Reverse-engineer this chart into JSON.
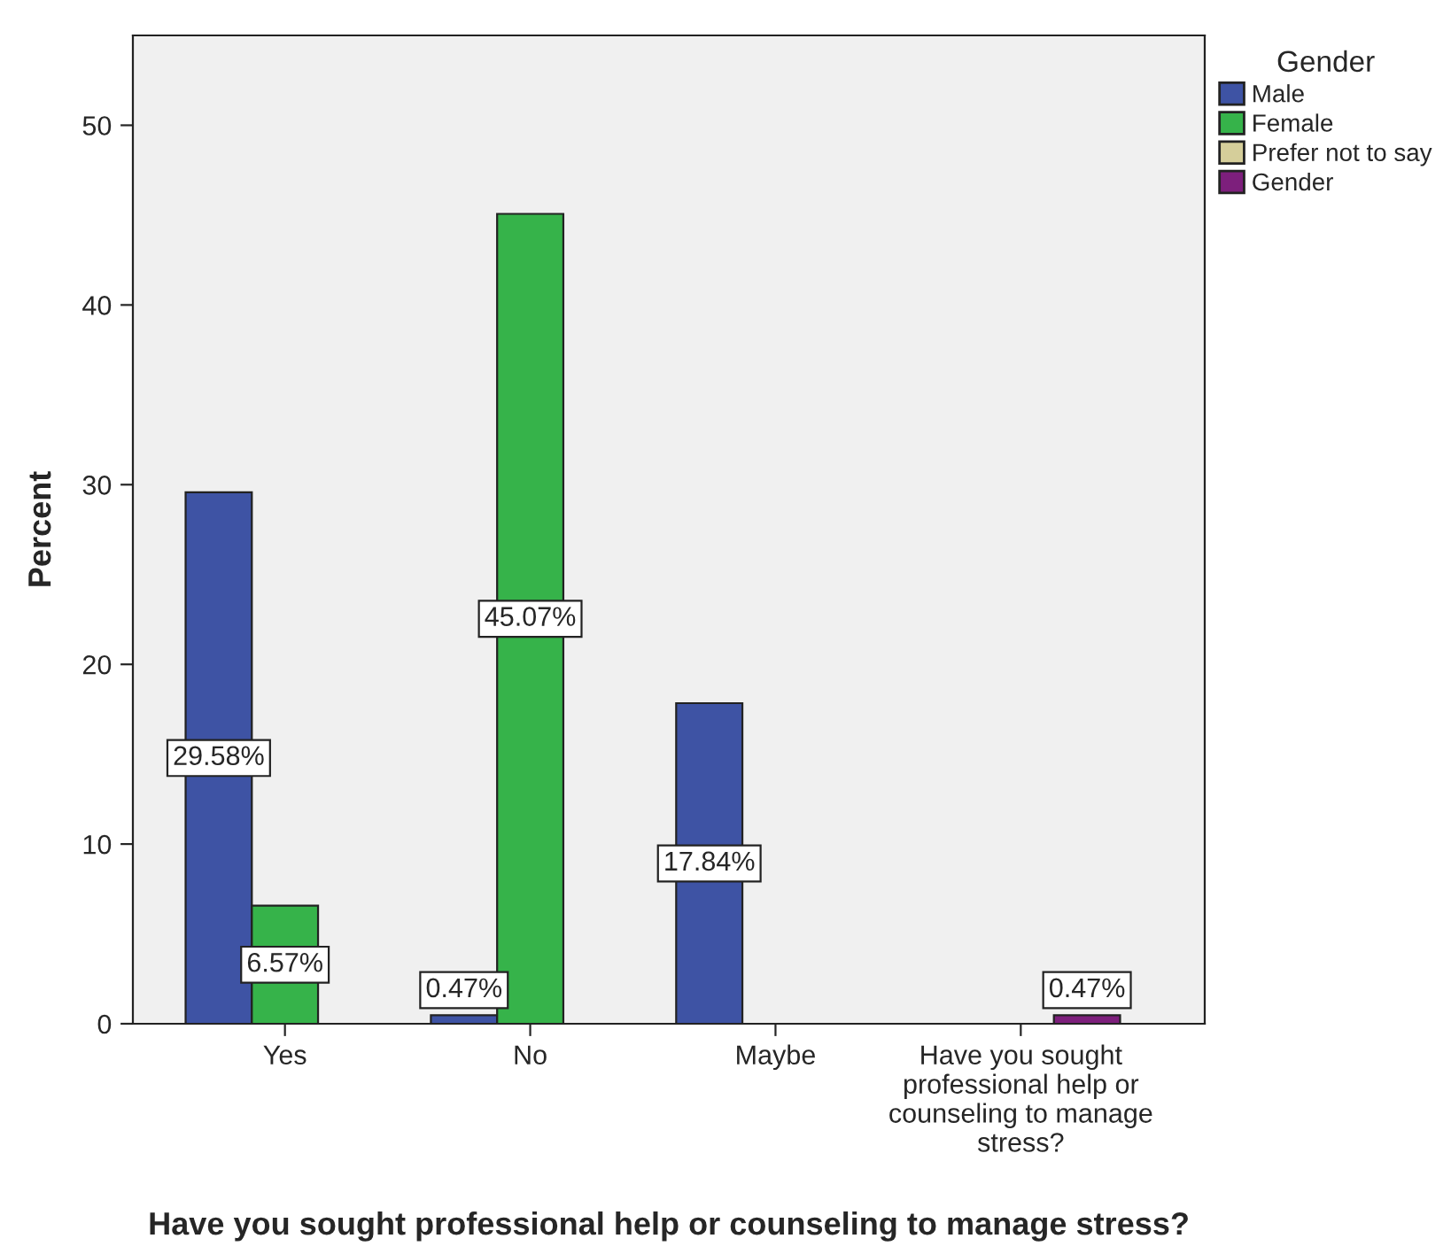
{
  "chart_data": {
    "type": "bar",
    "xlabel": "Have you sought professional help or counseling to manage stress?",
    "ylabel": "Percent",
    "legend_title": "Gender",
    "categories": [
      "Yes",
      "No",
      "Maybe",
      "Have you sought professional help or counseling to manage stress?"
    ],
    "series": [
      {
        "name": "Male",
        "color": "#3e53a4",
        "values": [
          29.58,
          0.47,
          17.84,
          null
        ],
        "value_labels": [
          "29.58%",
          "0.47%",
          "17.84%",
          null
        ]
      },
      {
        "name": "Female",
        "color": "#36b34a",
        "values": [
          6.57,
          45.07,
          null,
          null
        ],
        "value_labels": [
          "6.57%",
          "45.07%",
          null,
          null
        ]
      },
      {
        "name": "Prefer not to say",
        "color": "#d5ce9a",
        "values": [
          null,
          null,
          null,
          null
        ]
      },
      {
        "name": "Gender",
        "color": "#7d1f7c",
        "values": [
          null,
          null,
          null,
          0.47
        ],
        "value_labels": [
          null,
          null,
          null,
          "0.47%"
        ]
      }
    ],
    "ylim": [
      0,
      55
    ],
    "yticks": [
      0,
      10,
      20,
      30,
      40,
      50
    ],
    "grid": false,
    "legend": "right"
  }
}
